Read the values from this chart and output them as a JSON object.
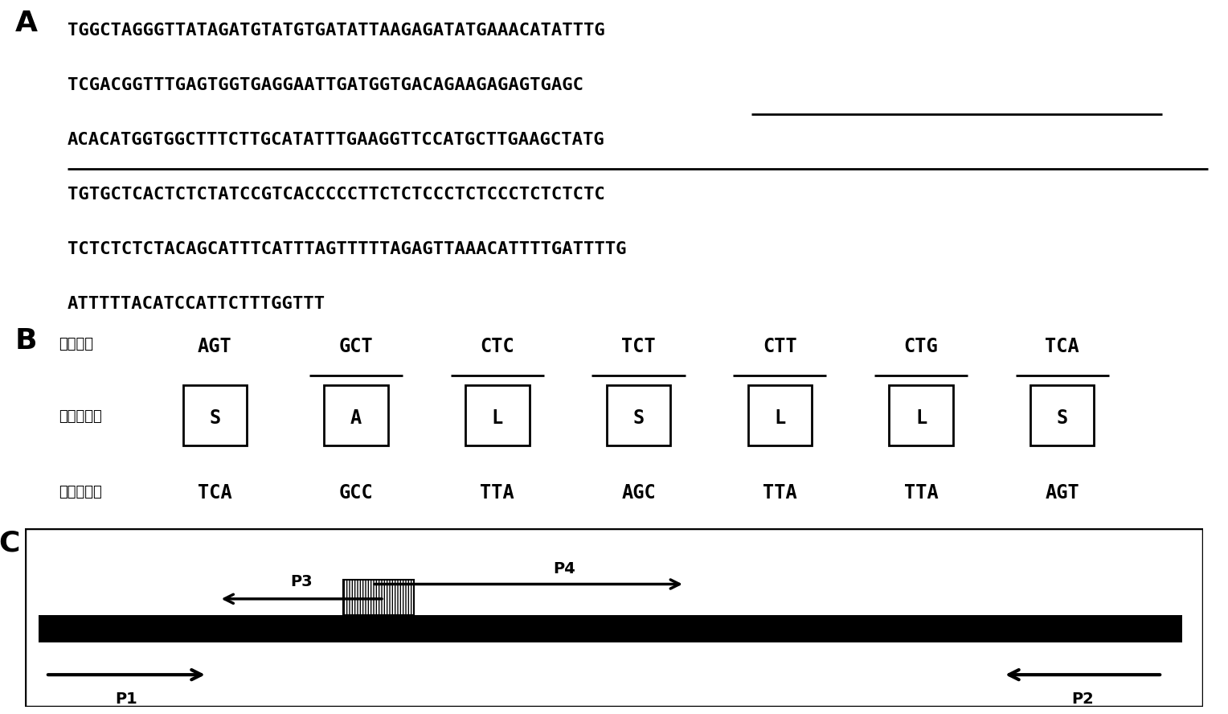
{
  "section_A_label": "A",
  "section_B_label": "B",
  "section_C_label": "C",
  "seq_line1": "TGGCTAGGGTTATAGATGTATGTGATATTAAGAGATATGAAACATATTTG",
  "seq_line2_normal": "TCGACGGTTTGAGTGGTGAGGAATTGATGG",
  "seq_line2_underline": "TGACAGAAGAGAGTGAGC",
  "seq_line3_underline": "ACACATGGTGGCTTTCTTGCATATTTGAAGGTTCCATGCTTGAAGCTATG",
  "seq_line4": "TGTGCTCACTCTCTATCCGTCACCCCCTTCTCTCCCTCTCCCTCTCTCTC",
  "seq_line5": "TCTCTCTCTACAGCATTTCATTTAGTTTTTAGAGTTAAACATTTTGATTTTG",
  "seq_line6": "ATTTTTACATCCATTCTTTGGTTT",
  "B_original_label": "原始序列",
  "B_amino_label": "氨基酸序列",
  "B_mutant_label": "突变后序列",
  "B_codons_original": [
    "AGT",
    "GCT",
    "CTC",
    "TCT",
    "CTT",
    "CTG",
    "TCA"
  ],
  "B_codons_underline": [
    false,
    true,
    true,
    true,
    true,
    true,
    true
  ],
  "B_amino": [
    "S",
    "A",
    "L",
    "S",
    "L",
    "L",
    "S"
  ],
  "B_codons_mutant": [
    "TCA",
    "GCC",
    "TTA",
    "AGC",
    "TTA",
    "TTA",
    "AGT"
  ],
  "C_P1_label": "P1",
  "C_P2_label": "P2",
  "C_P3_label": "P3",
  "C_P4_label": "P4",
  "bg_color": "#ffffff",
  "text_color": "#000000"
}
